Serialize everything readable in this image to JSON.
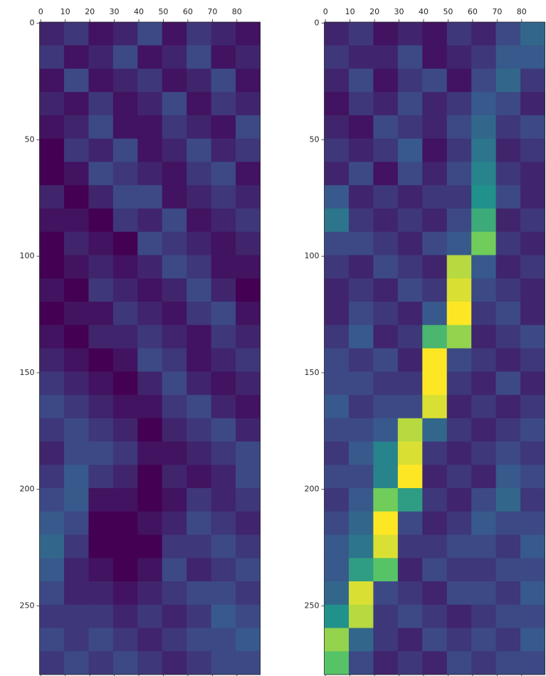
{
  "chart_data": [
    {
      "type": "heatmap",
      "colormap": "viridis",
      "xlim": [
        -0.5,
        89.5
      ],
      "ylim": [
        279.5,
        -0.5
      ],
      "xticks": [
        0,
        10,
        20,
        30,
        40,
        50,
        60,
        70,
        80
      ],
      "yticks": [
        0,
        50,
        100,
        150,
        200,
        250
      ],
      "z": [
        [
          0.2,
          0.25,
          0.15,
          0.2,
          0.3,
          0.15,
          0.25,
          0.2,
          0.15
        ],
        [
          0.25,
          0.15,
          0.2,
          0.3,
          0.15,
          0.2,
          0.3,
          0.15,
          0.2
        ],
        [
          0.15,
          0.3,
          0.15,
          0.2,
          0.25,
          0.15,
          0.2,
          0.3,
          0.15
        ],
        [
          0.2,
          0.15,
          0.25,
          0.15,
          0.2,
          0.3,
          0.15,
          0.25,
          0.2
        ],
        [
          0.15,
          0.2,
          0.3,
          0.15,
          0.15,
          0.25,
          0.2,
          0.15,
          0.3
        ],
        [
          0.1,
          0.25,
          0.2,
          0.3,
          0.15,
          0.2,
          0.3,
          0.2,
          0.25
        ],
        [
          0.1,
          0.15,
          0.3,
          0.25,
          0.2,
          0.15,
          0.25,
          0.3,
          0.15
        ],
        [
          0.2,
          0.1,
          0.2,
          0.3,
          0.3,
          0.15,
          0.2,
          0.25,
          0.2
        ],
        [
          0.15,
          0.15,
          0.1,
          0.25,
          0.2,
          0.3,
          0.15,
          0.2,
          0.25
        ],
        [
          0.1,
          0.2,
          0.15,
          0.1,
          0.3,
          0.25,
          0.2,
          0.15,
          0.2
        ],
        [
          0.1,
          0.15,
          0.2,
          0.15,
          0.2,
          0.3,
          0.25,
          0.15,
          0.15
        ],
        [
          0.15,
          0.1,
          0.25,
          0.2,
          0.15,
          0.2,
          0.3,
          0.2,
          0.1
        ],
        [
          0.1,
          0.15,
          0.15,
          0.25,
          0.2,
          0.15,
          0.25,
          0.3,
          0.15
        ],
        [
          0.15,
          0.1,
          0.2,
          0.2,
          0.25,
          0.2,
          0.15,
          0.25,
          0.2
        ],
        [
          0.2,
          0.15,
          0.1,
          0.15,
          0.3,
          0.25,
          0.15,
          0.2,
          0.25
        ],
        [
          0.25,
          0.2,
          0.15,
          0.1,
          0.2,
          0.3,
          0.2,
          0.15,
          0.2
        ],
        [
          0.3,
          0.25,
          0.2,
          0.15,
          0.15,
          0.25,
          0.3,
          0.2,
          0.15
        ],
        [
          0.25,
          0.3,
          0.25,
          0.2,
          0.1,
          0.2,
          0.25,
          0.3,
          0.2
        ],
        [
          0.2,
          0.3,
          0.3,
          0.25,
          0.15,
          0.15,
          0.2,
          0.25,
          0.3
        ],
        [
          0.25,
          0.35,
          0.25,
          0.2,
          0.1,
          0.2,
          0.15,
          0.2,
          0.3
        ],
        [
          0.3,
          0.35,
          0.15,
          0.15,
          0.1,
          0.15,
          0.25,
          0.2,
          0.25
        ],
        [
          0.35,
          0.3,
          0.1,
          0.1,
          0.15,
          0.2,
          0.3,
          0.25,
          0.2
        ],
        [
          0.4,
          0.25,
          0.1,
          0.1,
          0.1,
          0.25,
          0.25,
          0.3,
          0.25
        ],
        [
          0.35,
          0.2,
          0.15,
          0.1,
          0.15,
          0.3,
          0.2,
          0.25,
          0.3
        ],
        [
          0.3,
          0.2,
          0.2,
          0.15,
          0.2,
          0.25,
          0.3,
          0.3,
          0.25
        ],
        [
          0.25,
          0.25,
          0.25,
          0.2,
          0.25,
          0.2,
          0.25,
          0.35,
          0.3
        ],
        [
          0.3,
          0.25,
          0.3,
          0.25,
          0.2,
          0.25,
          0.3,
          0.3,
          0.35
        ],
        [
          0.25,
          0.3,
          0.25,
          0.3,
          0.25,
          0.2,
          0.25,
          0.3,
          0.3
        ]
      ]
    },
    {
      "type": "heatmap",
      "colormap": "viridis",
      "xlim": [
        -0.5,
        89.5
      ],
      "ylim": [
        279.5,
        -0.5
      ],
      "xticks": [
        0,
        10,
        20,
        30,
        40,
        50,
        60,
        70,
        80
      ],
      "yticks": [
        0,
        50,
        100,
        150,
        200,
        250
      ],
      "z": [
        [
          0.2,
          0.25,
          0.15,
          0.2,
          0.15,
          0.25,
          0.2,
          0.3,
          0.4
        ],
        [
          0.25,
          0.2,
          0.2,
          0.3,
          0.15,
          0.2,
          0.25,
          0.35,
          0.35
        ],
        [
          0.2,
          0.3,
          0.15,
          0.25,
          0.3,
          0.15,
          0.3,
          0.4,
          0.25
        ],
        [
          0.15,
          0.25,
          0.2,
          0.3,
          0.2,
          0.25,
          0.35,
          0.3,
          0.2
        ],
        [
          0.2,
          0.15,
          0.3,
          0.25,
          0.2,
          0.3,
          0.4,
          0.25,
          0.3
        ],
        [
          0.25,
          0.2,
          0.25,
          0.35,
          0.15,
          0.25,
          0.45,
          0.2,
          0.25
        ],
        [
          0.2,
          0.3,
          0.15,
          0.3,
          0.2,
          0.3,
          0.5,
          0.25,
          0.2
        ],
        [
          0.35,
          0.2,
          0.25,
          0.2,
          0.25,
          0.25,
          0.55,
          0.3,
          0.2
        ],
        [
          0.45,
          0.25,
          0.2,
          0.25,
          0.2,
          0.3,
          0.65,
          0.2,
          0.25
        ],
        [
          0.3,
          0.3,
          0.25,
          0.2,
          0.3,
          0.35,
          0.8,
          0.25,
          0.2
        ],
        [
          0.25,
          0.2,
          0.3,
          0.25,
          0.2,
          0.9,
          0.35,
          0.2,
          0.25
        ],
        [
          0.2,
          0.25,
          0.2,
          0.3,
          0.25,
          0.95,
          0.3,
          0.25,
          0.2
        ],
        [
          0.2,
          0.3,
          0.25,
          0.2,
          0.35,
          1.0,
          0.25,
          0.3,
          0.2
        ],
        [
          0.25,
          0.35,
          0.2,
          0.25,
          0.7,
          0.85,
          0.2,
          0.25,
          0.3
        ],
        [
          0.3,
          0.25,
          0.3,
          0.2,
          1.0,
          0.3,
          0.25,
          0.2,
          0.25
        ],
        [
          0.3,
          0.3,
          0.25,
          0.25,
          1.0,
          0.25,
          0.2,
          0.3,
          0.2
        ],
        [
          0.35,
          0.25,
          0.3,
          0.3,
          0.95,
          0.2,
          0.25,
          0.2,
          0.25
        ],
        [
          0.3,
          0.3,
          0.35,
          0.9,
          0.4,
          0.25,
          0.2,
          0.25,
          0.3
        ],
        [
          0.25,
          0.35,
          0.5,
          0.95,
          0.25,
          0.2,
          0.25,
          0.3,
          0.25
        ],
        [
          0.3,
          0.3,
          0.5,
          1.0,
          0.2,
          0.25,
          0.2,
          0.35,
          0.3
        ],
        [
          0.25,
          0.35,
          0.8,
          0.6,
          0.25,
          0.2,
          0.3,
          0.4,
          0.25
        ],
        [
          0.3,
          0.4,
          1.0,
          0.3,
          0.2,
          0.25,
          0.35,
          0.3,
          0.3
        ],
        [
          0.35,
          0.45,
          0.95,
          0.25,
          0.25,
          0.3,
          0.3,
          0.25,
          0.35
        ],
        [
          0.35,
          0.6,
          0.75,
          0.2,
          0.3,
          0.25,
          0.25,
          0.3,
          0.3
        ],
        [
          0.4,
          0.95,
          0.3,
          0.25,
          0.2,
          0.3,
          0.3,
          0.25,
          0.35
        ],
        [
          0.55,
          0.9,
          0.25,
          0.3,
          0.25,
          0.2,
          0.25,
          0.3,
          0.3
        ],
        [
          0.85,
          0.4,
          0.25,
          0.2,
          0.3,
          0.25,
          0.3,
          0.25,
          0.35
        ],
        [
          0.75,
          0.3,
          0.2,
          0.25,
          0.2,
          0.3,
          0.25,
          0.3,
          0.3
        ]
      ]
    }
  ]
}
